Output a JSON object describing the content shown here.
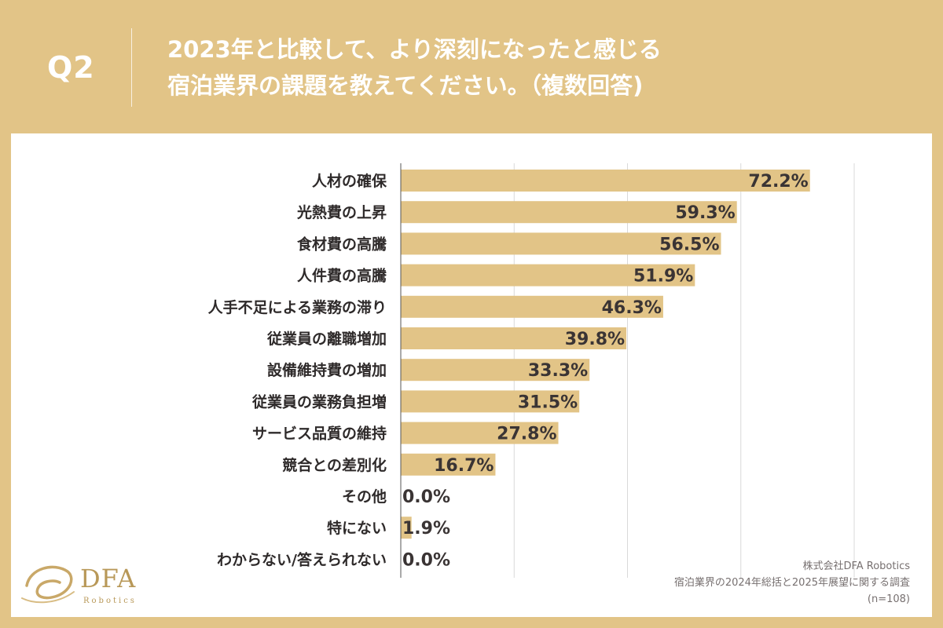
{
  "header": {
    "q_label": "Q2",
    "title_line1": "2023年と比較して、より深刻になったと感じる",
    "title_line2": "宿泊業界の課題を教えてください。（複数回答)"
  },
  "credits": {
    "company": "株式会社DFA Robotics",
    "survey": "宿泊業界の2024年総括と2025年展望に関する調査",
    "sample": "(n=108)"
  },
  "logo": {
    "name": "DFA",
    "sub": "Robotics"
  },
  "colors": {
    "background": "#e2c487",
    "bar": "#e2c487",
    "grid": "#d9d9d9",
    "axis": "#555555"
  },
  "chart_data": {
    "type": "bar",
    "orientation": "horizontal",
    "title": "2023年と比較して、より深刻になったと感じる宿泊業界の課題を教えてください。（複数回答)",
    "categories": [
      "人材の確保",
      "光熱費の上昇",
      "食材費の高騰",
      "人件費の高騰",
      "人手不足による業務の滞り",
      "従業員の離職増加",
      "設備維持費の増加",
      "従業員の業務負担増",
      "サービス品質の維持",
      "競合との差別化",
      "その他",
      "特にない",
      "わからない/答えられない"
    ],
    "values": [
      72.2,
      59.3,
      56.5,
      51.9,
      46.3,
      39.8,
      33.3,
      31.5,
      27.8,
      16.7,
      0.0,
      1.9,
      0.0
    ],
    "value_labels": [
      "72.2%",
      "59.3%",
      "56.5%",
      "51.9%",
      "46.3%",
      "39.8%",
      "33.3%",
      "31.5%",
      "27.8%",
      "16.7%",
      "0.0%",
      "1.9%",
      "0.0%"
    ],
    "xlim": [
      0,
      80
    ],
    "gridlines": [
      0,
      20,
      40,
      60,
      80
    ],
    "unit": "%"
  }
}
